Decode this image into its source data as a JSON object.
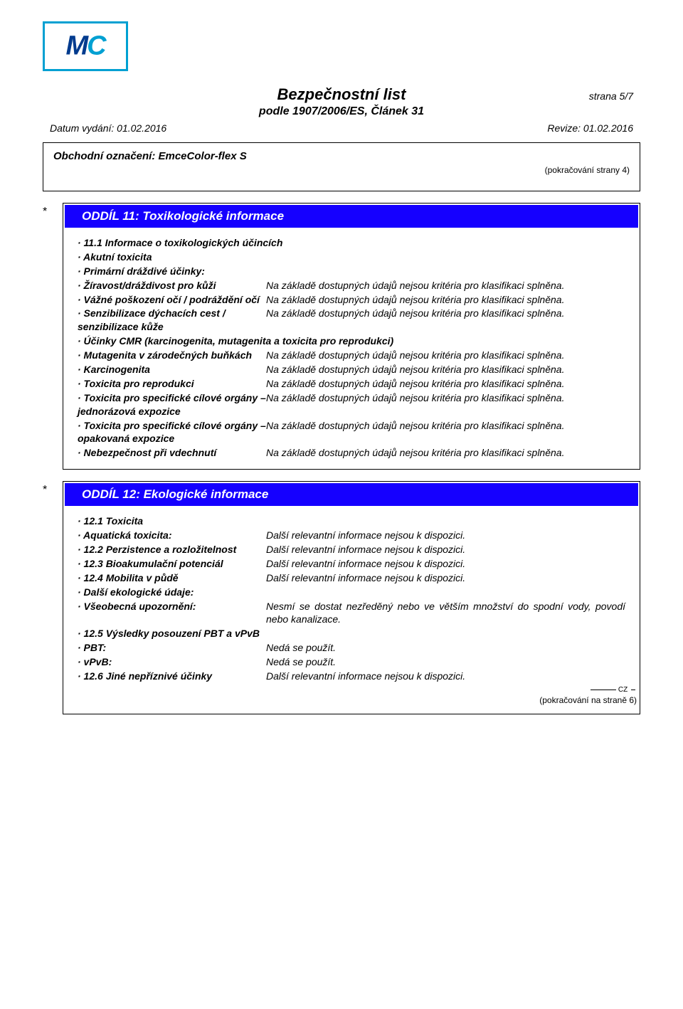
{
  "colors": {
    "logo_border": "#00a0d2",
    "logo_m": "#003b8e",
    "logo_c": "#00a0d2",
    "section_header_bg": "#1500ff",
    "section_header_text": "#ffffff",
    "text": "#000000",
    "border": "#000000"
  },
  "header": {
    "page_label": "strana 5/7",
    "title": "Bezpečnostní list",
    "subtitle": "podle 1907/2006/ES, Článek 31",
    "date_label": "Datum vydání: 01.02.2016",
    "revision_label": "Revize: 01.02.2016"
  },
  "top_box": {
    "product_label": "Obchodní označení: EmceColor-flex S",
    "continuation": "(pokračování  strany 4)"
  },
  "section11": {
    "asterisk": "*",
    "title": "ODDÍL 11: Toxikologické informace",
    "rows": [
      {
        "label": "· 11.1 Informace o toxikologických účincích",
        "value": "",
        "label_only": true
      },
      {
        "label": "· Akutní toxicita",
        "value": "",
        "label_only": true
      },
      {
        "label": "· Primární dráždivé účinky:",
        "value": "",
        "label_only": true
      },
      {
        "label": "· Žíravost/dráždivost pro kůži",
        "value": "Na základě dostupných údajů nejsou kritéria pro klasifikaci splněna."
      },
      {
        "label": "· Vážné poškození očí / podráždění očí",
        "value": "Na základě dostupných údajů nejsou kritéria pro klasifikaci splněna."
      },
      {
        "label": "· Senzibilizace dýchacích cest / senzibilizace kůže",
        "value": "Na základě dostupných údajů nejsou kritéria pro klasifikaci splněna."
      },
      {
        "label": "· Účinky CMR (karcinogenita, mutagenita a toxicita pro reprodukci)",
        "value": "",
        "label_only": true
      },
      {
        "label": "· Mutagenita v zárodečných buňkách",
        "value": "Na základě dostupných údajů nejsou kritéria pro klasifikaci splněna."
      },
      {
        "label": "· Karcinogenita",
        "value": "Na základě dostupných údajů nejsou kritéria pro klasifikaci splněna."
      },
      {
        "label": "· Toxicita pro reprodukci",
        "value": "Na základě dostupných údajů nejsou kritéria pro klasifikaci splněna."
      },
      {
        "label": "· Toxicita pro specifické cílové orgány – jednorázová expozice",
        "value": "Na základě dostupných údajů nejsou kritéria pro klasifikaci splněna."
      },
      {
        "label": "· Toxicita pro specifické cílové orgány – opakovaná expozice",
        "value": "Na základě dostupných údajů nejsou kritéria pro klasifikaci splněna."
      },
      {
        "label": "· Nebezpečnost při vdechnutí",
        "value": "Na základě dostupných údajů nejsou kritéria pro klasifikaci splněna."
      }
    ]
  },
  "section12": {
    "asterisk": "*",
    "title": "ODDÍL 12: Ekologické informace",
    "rows": [
      {
        "label": "· 12.1 Toxicita",
        "value": "",
        "label_only": true
      },
      {
        "label": "· Aquatická toxicita:",
        "value": "Další relevantní informace nejsou k dispozici."
      },
      {
        "label": "· 12.2 Perzistence a rozložitelnost",
        "value": "Další relevantní informace nejsou k dispozici."
      },
      {
        "label": "· 12.3 Bioakumulační potenciál",
        "value": "Další relevantní informace nejsou k dispozici."
      },
      {
        "label": "· 12.4 Mobilita v půdě",
        "value": "Další relevantní informace nejsou k dispozici."
      },
      {
        "label": "· Další ekologické údaje:",
        "value": "",
        "label_only": true
      },
      {
        "label": "· Všeobecná upozornění:",
        "value": "Nesmí se dostat nezředěný nebo ve větším množství do spodní vody, povodí nebo kanalizace."
      },
      {
        "label": "· 12.5 Výsledky posouzení PBT a vPvB",
        "value": "",
        "label_only": true
      },
      {
        "label": "· PBT:",
        "value": "Nedá se použít."
      },
      {
        "label": "· vPvB:",
        "value": "Nedá se použít."
      },
      {
        "label": "· 12.6 Jiné nepříznivé účinky",
        "value": "Další relevantní informace nejsou k dispozici."
      }
    ],
    "footer_cz": "CZ",
    "footer_continuation": "(pokračování na straně 6)"
  }
}
